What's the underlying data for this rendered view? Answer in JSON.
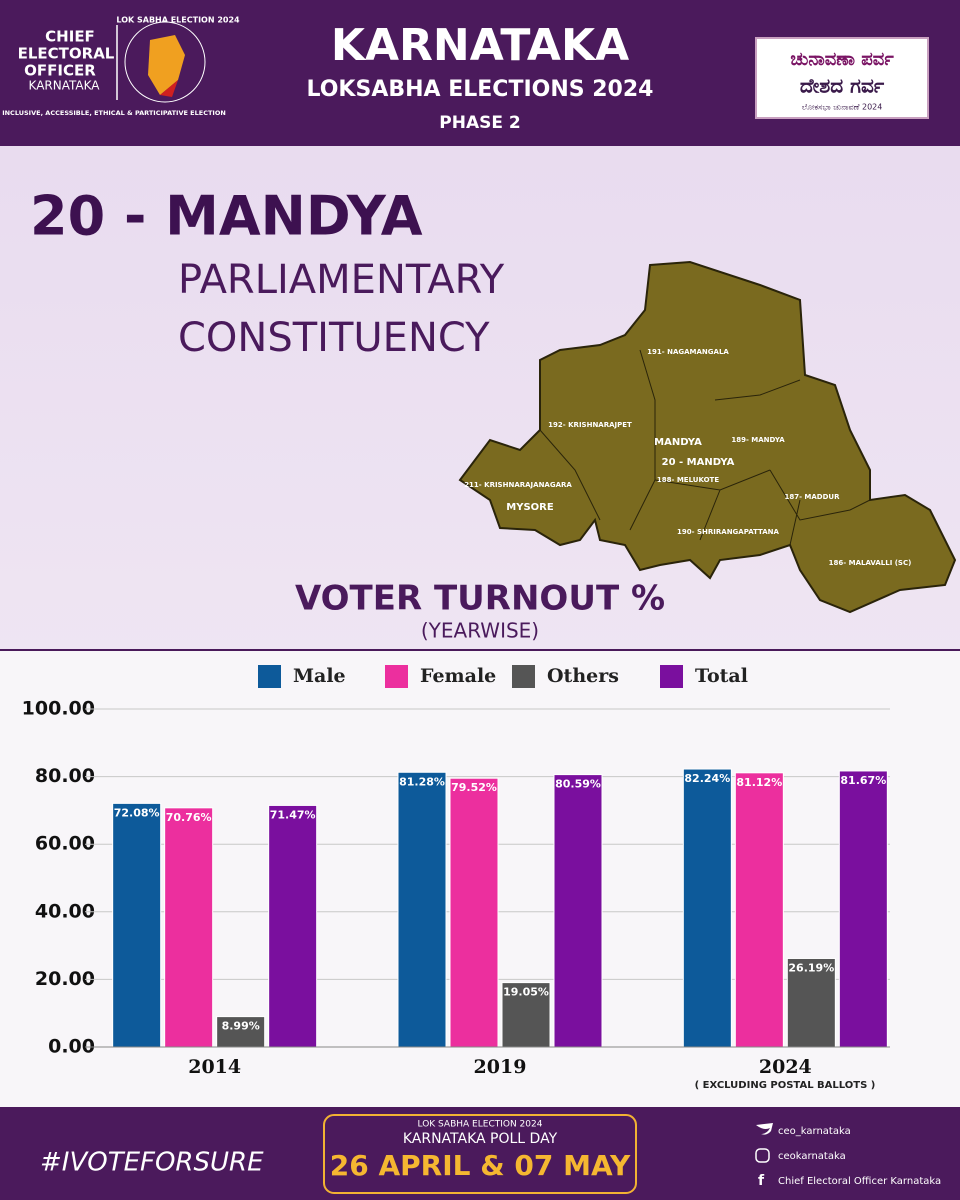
{
  "header": {
    "logo_lines": [
      "CHIEF",
      "ELECTORAL",
      "OFFICER",
      "KARNATAKA"
    ],
    "logo_ring": "LOK SABHA ELECTION 2024",
    "logo_tagline": "INCLUSIVE, ACCESSIBLE, ETHICAL & PARTICIPATIVE ELECTION",
    "title": "KARNATAKA",
    "subtitle": "LOKSABHA ELECTIONS 2024",
    "phase": "PHASE 2",
    "badge_lines": [
      "ಚುನಾವಣಾ ಪರ್ವ",
      "ದೇಶದ ಗರ್ವ",
      "ಲೋಕಸಭಾ ಚುನಾವಣೆ 2024"
    ]
  },
  "constituency": {
    "name": "20 - MANDYA",
    "kind_lines": [
      "PARLIAMENTARY",
      "CONSTITUENCY"
    ]
  },
  "map": {
    "labels": [
      "191- NAGAMANGALA",
      "192- KRISHNARAJPET",
      "MANDYA",
      "189- MANDYA",
      "20 - MANDYA",
      "188- MELUKOTE",
      "211- KRISHNARAJANAGARA",
      "MYSORE",
      "187- MADDUR",
      "190- SHRIRANGAPATTANA",
      "186- MALAVALLI (SC)"
    ]
  },
  "chart_data": {
    "type": "bar",
    "title": "VOTER TURNOUT %",
    "subtitle": "(YEARWISE)",
    "note": "( EXCLUDING POSTAL BALLOTS )",
    "categories": [
      "2014",
      "2019",
      "2024"
    ],
    "series": [
      {
        "name": "Male",
        "color": "#0d5a9a",
        "values": [
          72.08,
          81.28,
          82.24
        ],
        "value_labels": [
          "72.08%",
          "81.28%",
          "82.24%"
        ]
      },
      {
        "name": "Female",
        "color": "#ec2f9e",
        "values": [
          70.76,
          79.52,
          81.12
        ],
        "value_labels": [
          "70.76%",
          "79.52%",
          "81.12%"
        ]
      },
      {
        "name": "Others",
        "color": "#555555",
        "values": [
          8.99,
          19.05,
          26.19
        ],
        "value_labels": [
          "8.99%",
          "19.05%",
          "26.19%"
        ]
      },
      {
        "name": "Total",
        "color": "#7a0f9e",
        "values": [
          71.47,
          80.59,
          81.67
        ],
        "value_labels": [
          "71.47%",
          "80.59%",
          "81.67%"
        ]
      }
    ],
    "ylim": [
      0,
      100
    ],
    "yticks": [
      {
        "value": 0,
        "label": "0.00"
      },
      {
        "value": 20,
        "label": "20.00"
      },
      {
        "value": 40,
        "label": "40.00"
      },
      {
        "value": 60,
        "label": "60.00"
      },
      {
        "value": 80,
        "label": "80.00"
      },
      {
        "value": 100,
        "label": "100.00"
      }
    ],
    "grid": true,
    "legend": "top"
  },
  "footer": {
    "hashtag": "#IVOTEFORSURE",
    "poll_kicker": "LOK SABHA ELECTION 2024",
    "poll_label": "KARNATAKA POLL DAY",
    "poll_dates": "26 APRIL & 07 MAY",
    "twitter": "ceo_karnataka",
    "instagram": "ceokarnataka",
    "facebook": "Chief Electoral Officer Karnataka"
  }
}
